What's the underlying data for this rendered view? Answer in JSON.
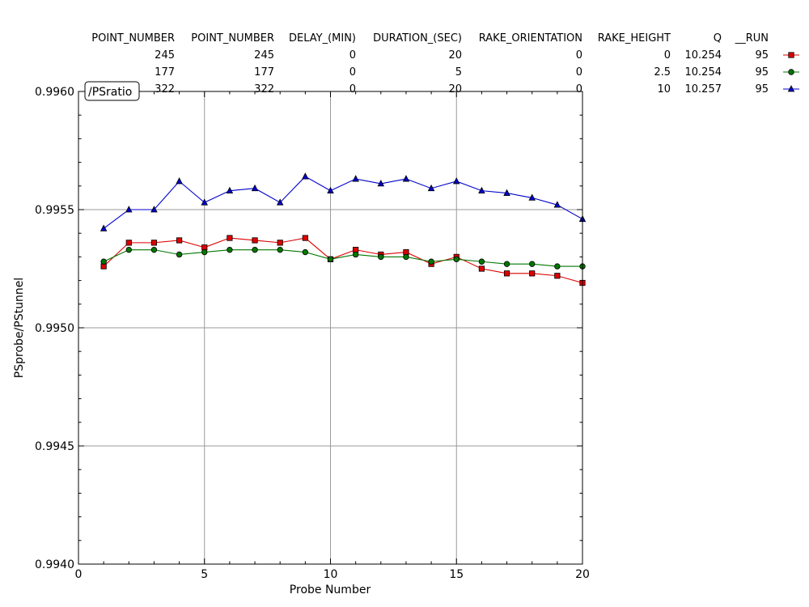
{
  "chart_data": {
    "type": "line",
    "title": "",
    "annotation": "/PSratio",
    "xlabel": "Probe Number",
    "ylabel": "PSprobe/PStunnel",
    "xlim": [
      0,
      20
    ],
    "ylim": [
      0.994,
      0.996
    ],
    "x_ticks": [
      0,
      5,
      10,
      15,
      20
    ],
    "y_ticks": [
      0.994,
      0.9945,
      0.995,
      0.9955,
      0.996
    ],
    "x_tick_labels": [
      "0",
      "5",
      "10",
      "15",
      "20"
    ],
    "y_tick_labels": [
      "0.9940",
      "0.9945",
      "0.9950",
      "0.9955",
      "0.9960"
    ],
    "grid": true,
    "legend_table": {
      "headers": [
        "POINT_NUMBER",
        "POINT_NUMBER",
        "DELAY_(MIN)",
        "DURATION_(SEC)",
        "RAKE_ORIENTATION",
        "RAKE_HEIGHT",
        "Q",
        "__RUN"
      ],
      "rows": [
        [
          "245",
          "245",
          "0",
          "20",
          "0",
          "0",
          "10.254",
          "95"
        ],
        [
          "177",
          "177",
          "0",
          "5",
          "0",
          "2.5",
          "10.254",
          "95"
        ],
        [
          "322",
          "322",
          "0",
          "20",
          "0",
          "10",
          "10.257",
          "95"
        ]
      ]
    },
    "x": [
      1,
      2,
      3,
      4,
      5,
      6,
      7,
      8,
      9,
      10,
      11,
      12,
      13,
      14,
      15,
      16,
      17,
      18,
      19,
      20
    ],
    "series": [
      {
        "color": "#dd0000",
        "marker": "square",
        "values": [
          0.99526,
          0.99536,
          0.99536,
          0.99537,
          0.99534,
          0.99538,
          0.99537,
          0.99536,
          0.99538,
          0.99529,
          0.99533,
          0.99531,
          0.99532,
          0.99527,
          0.9953,
          0.99525,
          0.99523,
          0.99523,
          0.99522,
          0.99519
        ]
      },
      {
        "color": "#007700",
        "marker": "circle",
        "values": [
          0.99528,
          0.99533,
          0.99533,
          0.99531,
          0.99532,
          0.99533,
          0.99533,
          0.99533,
          0.99532,
          0.99529,
          0.99531,
          0.9953,
          0.9953,
          0.99528,
          0.99529,
          0.99528,
          0.99527,
          0.99527,
          0.99526,
          0.99526
        ]
      },
      {
        "color": "#0000cc",
        "marker": "triangle",
        "values": [
          0.99542,
          0.9955,
          0.9955,
          0.99562,
          0.99553,
          0.99558,
          0.99559,
          0.99553,
          0.99564,
          0.99558,
          0.99563,
          0.99561,
          0.99563,
          0.99559,
          0.99562,
          0.99558,
          0.99557,
          0.99555,
          0.99552,
          0.99546
        ]
      }
    ]
  }
}
